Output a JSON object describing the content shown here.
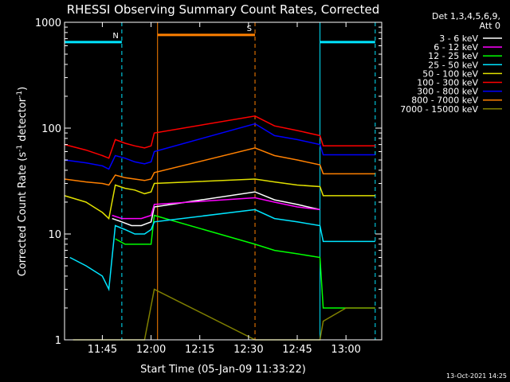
{
  "chart_data": {
    "type": "line",
    "title": "RHESSI Observing Summary Count Rates, Corrected",
    "xlabel": "Start Time (05-Jan-09 11:33:22)",
    "ylabel": "Corrected Count Rate (s",
    "ylabel_sup1": "-1",
    "ylabel_mid": " detector",
    "ylabel_sup2": "-1",
    "ylabel_end": ")",
    "yscale": "log",
    "ylim": [
      1,
      1000
    ],
    "xlim": [
      "11:33:22",
      "13:11:00"
    ],
    "x_tick_labels": [
      "11:45",
      "12:00",
      "12:15",
      "12:30",
      "12:45",
      "13:00"
    ],
    "y_tick_labels": [
      "1",
      "10",
      "100",
      "1000"
    ],
    "legend_header": [
      "Det 1,3,4,5,6,9,",
      "Att 0"
    ],
    "legend_placement": "right",
    "footer": "13-Oct-2021 14:25",
    "flag_marks": [
      {
        "label": "N",
        "color": "#00e5ff",
        "start": "11:33:22",
        "end": "11:51:00",
        "level": 650
      },
      {
        "label": "S",
        "color": "#ff8000",
        "start": "12:02:00",
        "end": "12:32:00",
        "level": 760
      },
      {
        "label": "",
        "color": "#00e5ff",
        "start": "12:52:00",
        "end": "13:09:00",
        "level": 650
      }
    ],
    "vertical_lines": [
      {
        "time": "11:51:00",
        "color": "#00e5ff",
        "style": "dashed"
      },
      {
        "time": "12:02:00",
        "color": "#ff8000",
        "style": "solid"
      },
      {
        "time": "12:32:00",
        "color": "#ff8000",
        "style": "dashed"
      },
      {
        "time": "12:52:00",
        "color": "#00e5ff",
        "style": "solid"
      },
      {
        "time": "13:09:00",
        "color": "#00e5ff",
        "style": "dashed"
      }
    ],
    "series": [
      {
        "name": "3 - 6 keV",
        "color": "#ffffff",
        "x": [
          "11:48",
          "11:51",
          "11:54",
          "11:57",
          "12:00",
          "12:01",
          "12:32",
          "12:38",
          "12:45",
          "12:52",
          "12:53",
          "13:00",
          "13:09"
        ],
        "values": [
          14,
          13,
          12,
          12,
          13,
          18,
          25,
          21,
          19,
          17,
          null,
          null,
          null
        ]
      },
      {
        "name": "6 - 12 keV",
        "color": "#ff00ff",
        "x": [
          "11:48",
          "11:51",
          "11:54",
          "11:57",
          "12:00",
          "12:01",
          "12:32",
          "12:38",
          "12:45",
          "12:52",
          "12:53",
          "13:00",
          "13:09"
        ],
        "values": [
          15,
          14,
          14,
          14,
          15,
          19,
          22,
          20,
          18,
          17,
          null,
          null,
          null
        ]
      },
      {
        "name": "12 - 25 keV",
        "color": "#00ff00",
        "x": [
          "11:36",
          "11:45",
          "11:47",
          "11:49",
          "11:52",
          "11:55",
          "11:58",
          "12:00",
          "12:01",
          "12:32",
          "12:38",
          "12:45",
          "12:52",
          "12:53",
          "13:00",
          "13:09"
        ],
        "values": [
          null,
          null,
          null,
          9,
          8,
          8,
          8,
          8,
          15,
          8,
          7,
          6.5,
          6,
          2,
          2,
          2
        ]
      },
      {
        "name": "25 - 50 keV",
        "color": "#00e5ff",
        "x": [
          "11:35",
          "11:40",
          "11:45",
          "11:47",
          "11:49",
          "11:52",
          "11:55",
          "11:58",
          "12:00",
          "12:01",
          "12:32",
          "12:38",
          "12:45",
          "12:52",
          "12:53",
          "13:00",
          "13:09"
        ],
        "values": [
          6,
          5,
          4,
          3,
          12,
          11,
          10,
          10,
          11,
          13,
          17,
          14,
          13,
          12,
          8.5,
          8.5,
          8.5
        ]
      },
      {
        "name": "50 - 100 keV",
        "color": "#e0e000",
        "x": [
          "11:33:22",
          "11:40",
          "11:45",
          "11:47",
          "11:49",
          "11:52",
          "11:55",
          "11:58",
          "12:00",
          "12:01",
          "12:32",
          "12:38",
          "12:45",
          "12:52",
          "12:53",
          "13:00",
          "13:09"
        ],
        "values": [
          23,
          20,
          16,
          14,
          29,
          27,
          26,
          24,
          25,
          30,
          33,
          31,
          29,
          28,
          23,
          23,
          23
        ]
      },
      {
        "name": "100 - 300 keV",
        "color": "#ff0000",
        "x": [
          "11:33:22",
          "11:40",
          "11:45",
          "11:47",
          "11:49",
          "11:52",
          "11:55",
          "11:58",
          "12:00",
          "12:01",
          "12:32",
          "12:38",
          "12:45",
          "12:52",
          "12:53",
          "13:00",
          "13:09"
        ],
        "values": [
          70,
          62,
          55,
          52,
          78,
          72,
          68,
          65,
          68,
          90,
          130,
          105,
          95,
          85,
          68,
          68,
          68
        ]
      },
      {
        "name": "300 - 800 keV",
        "color": "#0000ff",
        "x": [
          "11:33:22",
          "11:40",
          "11:45",
          "11:47",
          "11:49",
          "11:52",
          "11:55",
          "11:58",
          "12:00",
          "12:01",
          "12:32",
          "12:38",
          "12:45",
          "12:52",
          "12:53",
          "13:00",
          "13:09"
        ],
        "values": [
          50,
          47,
          44,
          41,
          55,
          52,
          48,
          46,
          48,
          60,
          110,
          85,
          78,
          70,
          56,
          56,
          56
        ]
      },
      {
        "name": "800 - 7000 keV",
        "color": "#ff8000",
        "x": [
          "11:33:22",
          "11:40",
          "11:45",
          "11:47",
          "11:49",
          "11:52",
          "11:55",
          "11:58",
          "12:00",
          "12:01",
          "12:32",
          "12:38",
          "12:45",
          "12:52",
          "12:53",
          "13:00",
          "13:09"
        ],
        "values": [
          33,
          31,
          30,
          29,
          36,
          34,
          33,
          32,
          33,
          38,
          65,
          55,
          50,
          45,
          37,
          37,
          37
        ]
      },
      {
        "name": "7000 - 15000 keV",
        "color": "#808000",
        "x": [
          "11:36",
          "11:47",
          "11:58",
          "12:01",
          "12:32",
          "12:52",
          "12:53",
          "13:00",
          "13:09"
        ],
        "values": [
          1,
          1,
          1,
          3,
          1,
          1,
          1.5,
          2,
          2
        ]
      }
    ]
  }
}
